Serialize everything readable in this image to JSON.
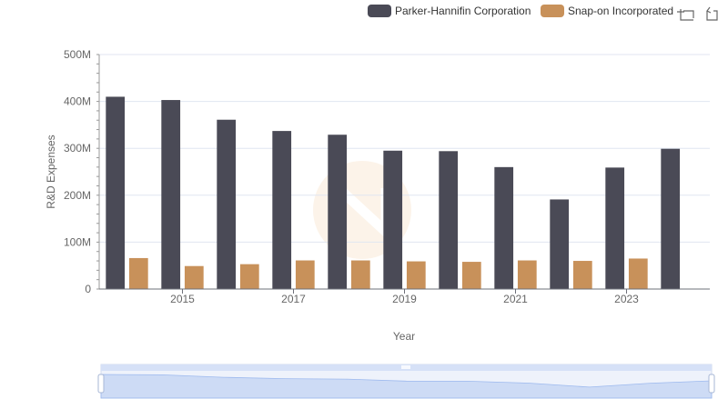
{
  "chart_data": {
    "type": "bar",
    "x": [
      2014,
      2015,
      2016,
      2017,
      2018,
      2019,
      2020,
      2021,
      2022,
      2023,
      2024
    ],
    "x_tick_labels": [
      "2015",
      "2017",
      "2019",
      "2021",
      "2023"
    ],
    "series": [
      {
        "name": "Parker-Hannifin Corporation",
        "color": "#4a4a56",
        "values": [
          410000000,
          403000000,
          361000000,
          337000000,
          329000000,
          295000000,
          294000000,
          260000000,
          191000000,
          259000000,
          299000000
        ]
      },
      {
        "name": "Snap-on Incorporated",
        "color": "#c8915a",
        "values": [
          66000000,
          49000000,
          53000000,
          61000000,
          61000000,
          59000000,
          58000000,
          61000000,
          60000000,
          65000000,
          null
        ]
      }
    ],
    "ylabel": "R&D Expenses",
    "xlabel": "Year",
    "ylim": [
      0,
      500000000
    ],
    "y_ticks": [
      0,
      100000000,
      200000000,
      300000000,
      400000000,
      500000000
    ],
    "y_tick_labels": [
      "0",
      "100M",
      "200M",
      "300M",
      "400M",
      "500M"
    ],
    "grid": true,
    "legend_position": "top-right"
  },
  "toolbar": {
    "zoom_icon": "zoom-select-icon",
    "restore_icon": "restore-icon"
  }
}
